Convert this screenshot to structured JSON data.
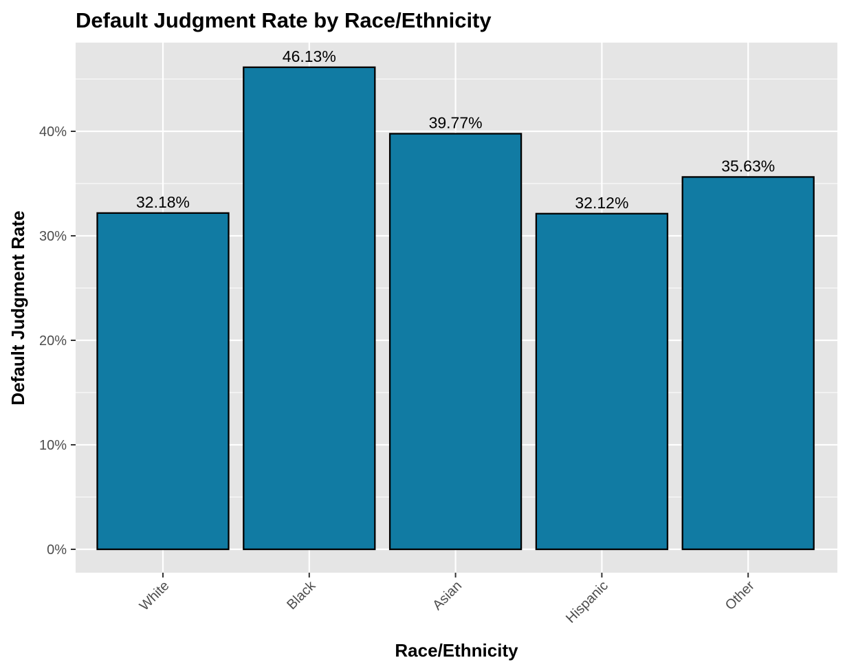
{
  "chart_data": {
    "type": "bar",
    "title": "Default Judgment Rate by Race/Ethnicity",
    "xlabel": "Race/Ethnicity",
    "ylabel": "Default Judgment Rate",
    "categories": [
      "White",
      "Black",
      "Asian",
      "Hispanic",
      "Other"
    ],
    "values": [
      32.18,
      46.13,
      39.77,
      32.12,
      35.63
    ],
    "value_labels": [
      "32.18%",
      "46.13%",
      "39.77%",
      "32.12%",
      "35.63%"
    ],
    "ylim": [
      0,
      48.5
    ],
    "y_ticks": [
      0,
      10,
      20,
      30,
      40
    ],
    "y_tick_labels": [
      "0%",
      "10%",
      "20%",
      "30%",
      "40%"
    ],
    "y_minor_ticks": [
      5,
      15,
      25,
      35,
      45
    ],
    "grid": true,
    "x_tick_rotation": 45,
    "colors": {
      "bar_fill": "#117ba3",
      "bar_outline": "#000000",
      "panel_background": "#e5e5e5",
      "grid_line": "#ffffff",
      "tick_text": "#4d4d4d",
      "tick_mark": "#333333"
    }
  }
}
